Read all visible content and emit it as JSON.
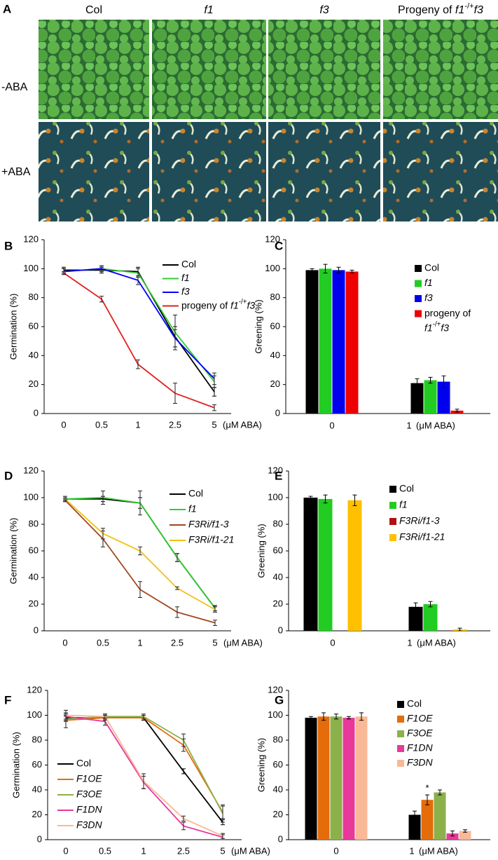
{
  "panel_a": {
    "label": "A",
    "columns": [
      [
        {
          "text": "Col"
        }
      ],
      [
        {
          "text": "f1",
          "italic": true
        }
      ],
      [
        {
          "text": "f3",
          "italic": true
        }
      ],
      [
        {
          "text": "Progeny of "
        },
        {
          "text": "f1",
          "italic": true
        },
        {
          "text": "-/+",
          "sup": true
        },
        {
          "text": "f3",
          "italic": true
        }
      ]
    ],
    "rows": [
      "-ABA",
      "+ABA"
    ]
  },
  "chart_data": [
    {
      "type": "line",
      "panel": "B",
      "y_label": "Germination (%)",
      "x_label": "(μM ABA)",
      "categories": [
        "0",
        "0.5",
        "1",
        "2.5",
        "5"
      ],
      "ylim": [
        0,
        120
      ],
      "yticks": [
        0,
        20,
        40,
        60,
        80,
        100,
        120
      ],
      "series": [
        {
          "name": "Col",
          "color": "#000000",
          "italic": false,
          "values": [
            99,
            99,
            98,
            53,
            15
          ],
          "errors": [
            2,
            2,
            3,
            7,
            3
          ]
        },
        {
          "name": "f1",
          "color": "#33cc33",
          "italic": true,
          "values": [
            98,
            100,
            97,
            56,
            22
          ],
          "errors": [
            2,
            2,
            3,
            12,
            4
          ]
        },
        {
          "name": "f3",
          "color": "#0000ff",
          "italic": true,
          "values": [
            98,
            100,
            92,
            52,
            24
          ],
          "errors": [
            2,
            2,
            3,
            6,
            4
          ]
        },
        {
          "name": [
            {
              "text": "progeny of "
            },
            {
              "text": "f1",
              "italic": true
            },
            {
              "text": "-/+",
              "sup": true
            },
            {
              "text": "f3",
              "italic": true
            }
          ],
          "color": "#e02020",
          "italic": false,
          "values": [
            97,
            79,
            34,
            14,
            4
          ],
          "errors": [
            1,
            2,
            3,
            7,
            2
          ]
        }
      ]
    },
    {
      "type": "bar",
      "panel": "C",
      "y_label": "Greening  (%)",
      "x_label": "(μM ABA)",
      "categories": [
        "0",
        "1"
      ],
      "ylim": [
        0,
        120
      ],
      "yticks": [
        0,
        20,
        40,
        60,
        80,
        100,
        120
      ],
      "series": [
        {
          "name": "Col",
          "color": "#000000",
          "italic": false,
          "values": [
            99,
            21
          ],
          "errors": [
            1,
            3
          ]
        },
        {
          "name": "f1",
          "color": "#22cc22",
          "italic": true,
          "values": [
            100,
            23
          ],
          "errors": [
            3,
            2
          ]
        },
        {
          "name": "f3",
          "color": "#0000ee",
          "italic": true,
          "values": [
            99,
            22
          ],
          "errors": [
            2,
            4
          ]
        },
        {
          "name": [
            {
              "text": "progeny of"
            },
            {
              "text": "f1",
              "italic": true
            },
            {
              "text": "-/+",
              "sup": true
            },
            {
              "text": "f3",
              "italic": true
            }
          ],
          "color": "#ee0000",
          "italic": false,
          "values": [
            98,
            2
          ],
          "errors": [
            1,
            1
          ]
        }
      ]
    },
    {
      "type": "line",
      "panel": "D",
      "y_label": "Germination (%)",
      "x_label": "(μM ABA)",
      "categories": [
        "0",
        "0.5",
        "1",
        "2.5",
        "5"
      ],
      "ylim": [
        0,
        120
      ],
      "yticks": [
        0,
        20,
        40,
        60,
        80,
        100,
        120
      ],
      "series": [
        {
          "name": "Col",
          "color": "#000000",
          "italic": false,
          "values": [
            99,
            99,
            96,
            55,
            17
          ],
          "errors": [
            1,
            2,
            4,
            3,
            2
          ]
        },
        {
          "name": "f1",
          "color": "#33cc33",
          "italic": true,
          "values": [
            99,
            100,
            96,
            55,
            17
          ],
          "errors": [
            2,
            5,
            9,
            3,
            2
          ]
        },
        {
          "name": "F3Ri/f1-3",
          "color": "#a0461e",
          "italic": true,
          "values": [
            98,
            69,
            31,
            14,
            6
          ],
          "errors": [
            1,
            6,
            6,
            4,
            2
          ]
        },
        {
          "name": "F3Ri/f1-21",
          "color": "#f2c010",
          "italic": true,
          "values": [
            99,
            73,
            60,
            32,
            16
          ],
          "errors": [
            1,
            4,
            3,
            1,
            2
          ]
        }
      ]
    },
    {
      "type": "bar",
      "panel": "E",
      "y_label": "Greening (%)",
      "x_label": "(μM ABA)",
      "categories": [
        "0",
        "1"
      ],
      "ylim": [
        0,
        120
      ],
      "yticks": [
        0,
        20,
        40,
        60,
        80,
        100,
        120
      ],
      "series": [
        {
          "name": "Col",
          "color": "#000000",
          "italic": false,
          "values": [
            100,
            18
          ],
          "errors": [
            1,
            3
          ]
        },
        {
          "name": "f1",
          "color": "#22cc22",
          "italic": true,
          "values": [
            99,
            20
          ],
          "errors": [
            3,
            2
          ]
        },
        {
          "name": "F3Ri/f1-3",
          "color": "#b01010",
          "italic": true,
          "values": [
            null,
            null
          ],
          "errors": [
            null,
            null
          ]
        },
        {
          "name": "F3Ri/f1-21",
          "color": "#ffc000",
          "italic": true,
          "values": [
            98,
            1
          ],
          "errors": [
            4,
            1
          ]
        }
      ]
    },
    {
      "type": "line",
      "panel": "F",
      "y_label": "Germination (%)",
      "x_label": "(μM ABA)",
      "categories": [
        "0",
        "0.5",
        "1",
        "2.5",
        "5"
      ],
      "ylim": [
        0,
        120
      ],
      "yticks": [
        0,
        20,
        40,
        60,
        80,
        100,
        120
      ],
      "series": [
        {
          "name": "Col",
          "color": "#000000",
          "italic": false,
          "values": [
            98,
            98,
            98,
            55,
            14
          ],
          "errors": [
            2,
            2,
            2,
            2,
            2
          ]
        },
        {
          "name": "F1OE",
          "color": "#e46c0a",
          "italic": true,
          "values": [
            96,
            98,
            98,
            76,
            22
          ],
          "errors": [
            6,
            2,
            2,
            5,
            5
          ]
        },
        {
          "name": "F3OE",
          "color": "#8cb04a",
          "italic": true,
          "values": [
            97,
            99,
            99,
            80,
            21
          ],
          "errors": [
            2,
            2,
            2,
            5,
            7
          ]
        },
        {
          "name": "F1DN",
          "color": "#e8389a",
          "italic": true,
          "values": [
            99,
            95,
            46,
            11,
            2
          ],
          "errors": [
            2,
            3,
            5,
            3,
            2
          ]
        },
        {
          "name": "F3DN",
          "color": "#f9b896",
          "italic": true,
          "values": [
            100,
            99,
            47,
            17,
            3
          ],
          "errors": [
            4,
            2,
            6,
            2,
            2
          ]
        }
      ]
    },
    {
      "type": "bar",
      "panel": "G",
      "y_label": "Greening (%)",
      "x_label": "(μM ABA)",
      "categories": [
        "0",
        "1"
      ],
      "ylim": [
        0,
        120
      ],
      "yticks": [
        0,
        20,
        40,
        60,
        80,
        100,
        120
      ],
      "annotations": [
        {
          "text": "*",
          "series": "F1OE",
          "category": "1"
        }
      ],
      "series": [
        {
          "name": "Col",
          "color": "#000000",
          "italic": false,
          "values": [
            98,
            20
          ],
          "errors": [
            1,
            3
          ]
        },
        {
          "name": "F1OE",
          "color": "#e46c0a",
          "italic": true,
          "values": [
            99,
            32
          ],
          "errors": [
            3,
            4
          ]
        },
        {
          "name": "F3OE",
          "color": "#8cb04a",
          "italic": true,
          "values": [
            99,
            38
          ],
          "errors": [
            2,
            2
          ]
        },
        {
          "name": "F1DN",
          "color": "#e8389a",
          "italic": true,
          "values": [
            98,
            5
          ],
          "errors": [
            1,
            2
          ]
        },
        {
          "name": "F3DN",
          "color": "#f9b896",
          "italic": true,
          "values": [
            99,
            7
          ],
          "errors": [
            3,
            1
          ]
        }
      ]
    }
  ]
}
